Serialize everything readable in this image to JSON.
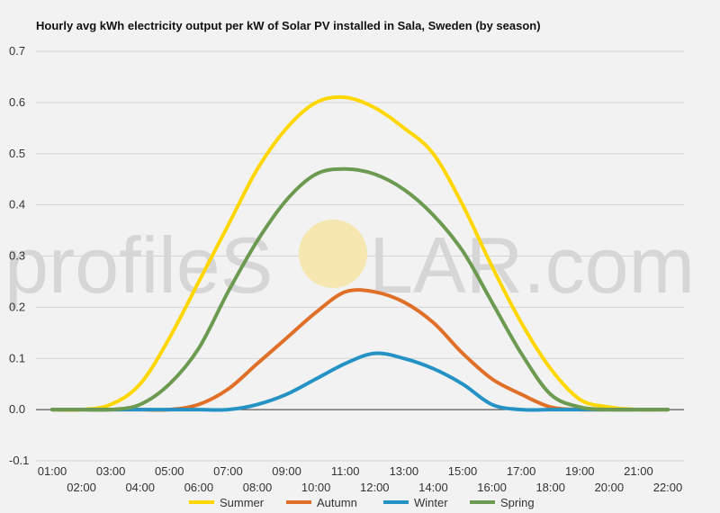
{
  "watermark": {
    "text_left": "profileS",
    "text_right": "LAR.com",
    "sun_color": "#f6e7b0"
  },
  "chart_data": {
    "type": "line",
    "title": "Hourly avg kWh electricity output per kW of Solar PV installed in Sala, Sweden (by season)",
    "xlabel": "",
    "ylabel": "",
    "ylim": [
      -0.1,
      0.7
    ],
    "yticks": [
      "-0.1",
      "0.0",
      "0.1",
      "0.2",
      "0.3",
      "0.4",
      "0.5",
      "0.6",
      "0.7"
    ],
    "grid": true,
    "legend": "bottom",
    "x": [
      "01:00",
      "02:00",
      "03:00",
      "04:00",
      "05:00",
      "06:00",
      "07:00",
      "08:00",
      "09:00",
      "10:00",
      "11:00",
      "12:00",
      "13:00",
      "14:00",
      "15:00",
      "16:00",
      "17:00",
      "18:00",
      "19:00",
      "20:00",
      "21:00",
      "22:00"
    ],
    "series": [
      {
        "name": "Summer",
        "color": "#ffd700",
        "values": [
          0,
          0,
          0.01,
          0.05,
          0.14,
          0.25,
          0.36,
          0.47,
          0.55,
          0.6,
          0.61,
          0.59,
          0.55,
          0.5,
          0.4,
          0.28,
          0.17,
          0.08,
          0.02,
          0.005,
          0,
          0
        ]
      },
      {
        "name": "Autumn",
        "color": "#e07028",
        "values": [
          0,
          0,
          0,
          0,
          0,
          0.01,
          0.04,
          0.09,
          0.14,
          0.19,
          0.23,
          0.23,
          0.21,
          0.17,
          0.11,
          0.06,
          0.03,
          0.005,
          0,
          0,
          0,
          0
        ]
      },
      {
        "name": "Winter",
        "color": "#2492c4",
        "values": [
          0,
          0,
          0,
          0,
          0,
          0,
          0,
          0.01,
          0.03,
          0.06,
          0.09,
          0.11,
          0.1,
          0.08,
          0.05,
          0.01,
          0,
          0,
          0,
          0,
          0,
          0
        ]
      },
      {
        "name": "Spring",
        "color": "#6b9a50",
        "values": [
          0,
          0,
          0,
          0.01,
          0.05,
          0.12,
          0.23,
          0.33,
          0.41,
          0.46,
          0.47,
          0.46,
          0.43,
          0.38,
          0.31,
          0.21,
          0.11,
          0.03,
          0.005,
          0,
          0,
          0
        ]
      }
    ]
  }
}
